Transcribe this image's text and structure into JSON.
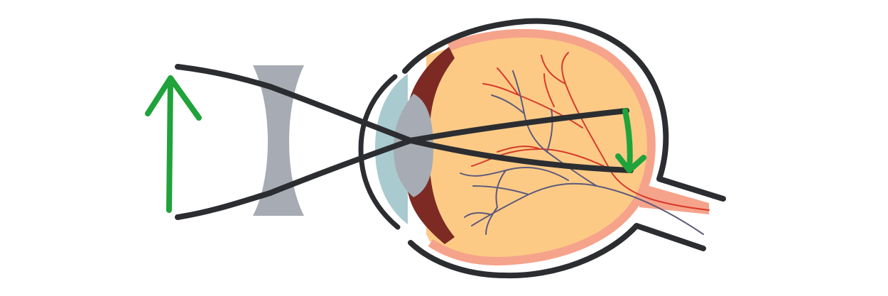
{
  "diagram": {
    "subject": "eye-with-concave-lens",
    "colors": {
      "outline": "#2b2d31",
      "object_arrow": "#1fa33a",
      "image_arrow": "#1fa33a",
      "lens": "#a7abb4",
      "eye_lens": "#a7abb4",
      "cornea": "#a9cbd0",
      "vitreous": "#fdca86",
      "retina": "#f6a38b",
      "iris": "#7c2a23",
      "artery": "#d63b2b",
      "vein": "#5d5a7a",
      "optic_nerve": "#f6a38b"
    },
    "icons": [
      "upright-arrow-icon",
      "inverted-arrow-icon",
      "concave-lens-icon",
      "eyeball-icon"
    ]
  }
}
